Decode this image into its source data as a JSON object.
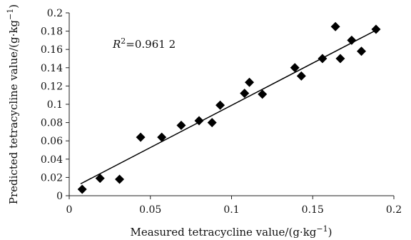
{
  "chart_data": {
    "type": "scatter",
    "x": [
      0.008,
      0.019,
      0.031,
      0.044,
      0.057,
      0.069,
      0.08,
      0.088,
      0.093,
      0.108,
      0.111,
      0.119,
      0.139,
      0.143,
      0.156,
      0.164,
      0.167,
      0.174,
      0.18,
      0.189
    ],
    "y": [
      0.007,
      0.019,
      0.018,
      0.064,
      0.064,
      0.077,
      0.082,
      0.08,
      0.099,
      0.112,
      0.124,
      0.111,
      0.14,
      0.131,
      0.15,
      0.185,
      0.15,
      0.17,
      0.158,
      0.182
    ],
    "trendline": {
      "x": [
        0.007,
        0.189
      ],
      "y": [
        0.013,
        0.181
      ]
    },
    "annotation": {
      "r_symbol": "R",
      "superscript": "2",
      "value": "=0.961 2"
    },
    "xlabel": {
      "prefix": "Measured tetracycline value/(g·kg",
      "sup": "−1",
      "suffix": ")"
    },
    "ylabel": {
      "prefix": "Predicted tetracycline value/(g·kg",
      "sup": "−1",
      "suffix": ")"
    },
    "xlim": [
      0,
      0.2
    ],
    "ylim": [
      0,
      0.2
    ],
    "xticks": [
      "0",
      "0.05",
      "0.1",
      "0.15",
      "0.2"
    ],
    "yticks": [
      "0",
      "0.02",
      "0.04",
      "0.06",
      "0.08",
      "0.1",
      "0.12",
      "0.14",
      "0.16",
      "0.18",
      "0.2"
    ],
    "grid": false,
    "colors": {
      "marker": "#000000",
      "line": "#000000",
      "axis": "#222222"
    }
  }
}
